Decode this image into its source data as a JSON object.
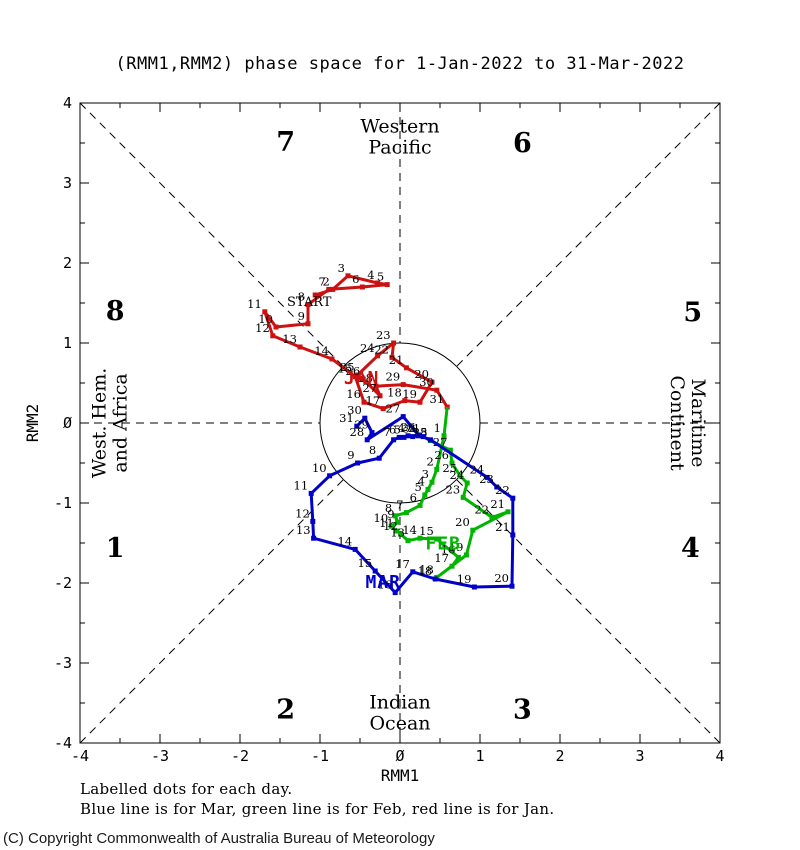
{
  "title": "(RMM1,RMM2) phase space for  1-Jan-2022 to 31-Mar-2022",
  "notes": {
    "line1": "Labelled dots for each day.",
    "line2": "Blue line is for Mar, green line is for Feb, red line is for Jan."
  },
  "copyright": "(C) Copyright Commonwealth of Australia Bureau of Meteorology",
  "chart_data": {
    "type": "line",
    "title": "(RMM1,RMM2) phase space for  1-Jan-2022 to 31-Mar-2022",
    "xlabel": "RMM1",
    "ylabel": "RMM2",
    "xlim": [
      -4,
      4
    ],
    "ylim": [
      -4,
      4
    ],
    "tick_step": 0.5,
    "x_ticks": [
      "-4",
      "-3",
      "-2",
      "-1",
      "Ø",
      "1",
      "2",
      "3",
      "4"
    ],
    "y_ticks": [
      "-4",
      "-3",
      "-2",
      "-1",
      "Ø",
      "1",
      "2",
      "3",
      "4"
    ],
    "unit_circle_radius": 1,
    "grid": "dashed octant dividers stopping at unit circle",
    "phase_labels": [
      {
        "n": "1",
        "x": -3.56,
        "y": -1.56
      },
      {
        "n": "2",
        "x": -1.43,
        "y": -3.58
      },
      {
        "n": "3",
        "x": 1.53,
        "y": -3.58
      },
      {
        "n": "4",
        "x": 3.63,
        "y": -1.56
      },
      {
        "n": "5",
        "x": 3.66,
        "y": 1.38
      },
      {
        "n": "6",
        "x": 1.53,
        "y": 3.5
      },
      {
        "n": "7",
        "x": -1.43,
        "y": 3.51
      },
      {
        "n": "8",
        "x": -3.56,
        "y": 1.4
      }
    ],
    "region_labels": [
      {
        "id": "top",
        "lines": [
          "Western",
          "Pacific"
        ],
        "x": 0,
        "y": 3.58,
        "rotate": 0
      },
      {
        "id": "bottom",
        "lines": [
          "Indian",
          "Ocean"
        ],
        "x": 0,
        "y": -3.62,
        "rotate": 0
      },
      {
        "id": "left",
        "lines": [
          "West. Hem.",
          "and Africa"
        ],
        "x": -3.63,
        "y": 0,
        "rotate": -90
      },
      {
        "id": "right",
        "lines": [
          "Maritime",
          "Continent"
        ],
        "x": 3.6,
        "y": 0,
        "rotate": 90
      }
    ],
    "series": [
      {
        "name": "January 2022",
        "month_label": "JAN",
        "color": "#cc1111",
        "label_pos": [
          -0.48,
          0.49
        ],
        "points": [
          [
            "START",
            -1.06,
            1.6
          ],
          [
            "2",
            -0.84,
            1.67
          ],
          [
            "3",
            -0.65,
            1.84
          ],
          [
            "4",
            -0.28,
            1.75
          ],
          [
            "5",
            -0.16,
            1.73
          ],
          [
            "6",
            -0.47,
            1.7
          ],
          [
            "7",
            -0.89,
            1.67
          ],
          [
            "8",
            -1.15,
            1.48
          ],
          [
            "9",
            -1.15,
            1.24
          ],
          [
            "10",
            -1.55,
            1.2
          ],
          [
            "11",
            -1.69,
            1.39
          ],
          [
            "12",
            -1.59,
            1.09
          ],
          [
            "13",
            -1.25,
            0.95
          ],
          [
            "14",
            -0.85,
            0.8
          ],
          [
            "15",
            -0.56,
            0.58
          ],
          [
            "16",
            -0.45,
            0.26
          ],
          [
            "17",
            -0.21,
            0.18
          ],
          [
            "18",
            0.06,
            0.28
          ],
          [
            "19",
            0.25,
            0.26
          ],
          [
            "20",
            0.4,
            0.51
          ],
          [
            "21",
            0.08,
            0.69
          ],
          [
            "22",
            -0.1,
            0.82
          ],
          [
            "23",
            -0.08,
            1.0
          ],
          [
            "24",
            -0.28,
            0.84
          ],
          [
            "25",
            -0.53,
            0.6
          ],
          [
            "26",
            -0.46,
            0.55
          ],
          [
            "27",
            -0.25,
            0.34
          ],
          [
            "28",
            -0.3,
            0.46
          ],
          [
            "29",
            0.04,
            0.48
          ],
          [
            "30",
            0.46,
            0.41
          ],
          [
            "31",
            0.59,
            0.2
          ]
        ]
      },
      {
        "name": "February 2022",
        "month_label": "FEB",
        "color": "#00b400",
        "label_pos": [
          0.54,
          -1.58
        ],
        "points": [
          [
            "1",
            0.55,
            -0.16
          ],
          [
            "2",
            0.46,
            -0.58
          ],
          [
            "3",
            0.4,
            -0.74
          ],
          [
            "4",
            0.35,
            -0.83
          ],
          [
            "5",
            0.31,
            -0.9
          ],
          [
            "6",
            0.25,
            -1.03
          ],
          [
            "7",
            0.08,
            -1.12
          ],
          [
            "8",
            -0.06,
            -1.16
          ],
          [
            "9",
            -0.03,
            -1.24
          ],
          [
            "10",
            -0.11,
            -1.29
          ],
          [
            "11",
            -0.04,
            -1.35
          ],
          [
            "12",
            0.01,
            -1.39
          ],
          [
            "13",
            0.1,
            -1.47
          ],
          [
            "14",
            0.25,
            -1.44
          ],
          [
            "15",
            0.46,
            -1.45
          ],
          [
            "16",
            0.73,
            -1.68
          ],
          [
            "17",
            0.65,
            -1.79
          ],
          [
            "18",
            0.46,
            -1.93
          ],
          [
            "19",
            0.83,
            -1.65
          ],
          [
            "20",
            0.91,
            -1.34
          ],
          [
            "21",
            1.35,
            -1.11
          ],
          [
            "22",
            1.15,
            -1.18
          ],
          [
            "23",
            0.79,
            -0.93
          ],
          [
            "24",
            0.84,
            -0.75
          ],
          [
            "25",
            0.75,
            -0.66
          ],
          [
            "26",
            0.65,
            -0.5
          ],
          [
            "27",
            0.63,
            -0.34
          ],
          [
            "28",
            0.38,
            -0.22
          ]
        ]
      },
      {
        "name": "March 2022",
        "month_label": "MAR",
        "color": "#0000c8",
        "label_pos": [
          -0.21,
          -2.06
        ],
        "points": [
          [
            "1",
            0.29,
            -0.17
          ],
          [
            "2",
            0.23,
            -0.16
          ],
          [
            "3",
            0.16,
            -0.17
          ],
          [
            "4",
            0.1,
            -0.16
          ],
          [
            "5",
            0.05,
            -0.18
          ],
          [
            "6",
            -0.01,
            -0.18
          ],
          [
            "7",
            -0.08,
            -0.21
          ],
          [
            "8",
            -0.26,
            -0.44
          ],
          [
            "9",
            -0.53,
            -0.5
          ],
          [
            "10",
            -0.88,
            -0.66
          ],
          [
            "11",
            -1.11,
            -0.88
          ],
          [
            "12",
            -1.09,
            -1.23
          ],
          [
            "13",
            -1.08,
            -1.44
          ],
          [
            "14",
            -0.56,
            -1.58
          ],
          [
            "15",
            -0.31,
            -1.85
          ],
          [
            "16",
            -0.06,
            -2.12
          ],
          [
            "17",
            0.16,
            -1.86
          ],
          [
            "18",
            0.44,
            -1.95
          ],
          [
            "19",
            0.93,
            -2.05
          ],
          [
            "20",
            1.4,
            -2.04
          ],
          [
            "21",
            1.41,
            -1.4
          ],
          [
            "22",
            1.41,
            -0.94
          ],
          [
            "23",
            1.21,
            -0.8
          ],
          [
            "24",
            1.09,
            -0.68
          ],
          [
            "25",
            0.38,
            -0.21
          ],
          [
            "26",
            0.23,
            -0.15
          ],
          [
            "27",
            0.04,
            0.08
          ],
          [
            "28",
            -0.41,
            -0.21
          ],
          [
            "29",
            -0.35,
            -0.12
          ],
          [
            "30",
            -0.44,
            0.06
          ],
          [
            "31",
            -0.54,
            -0.04
          ]
        ]
      }
    ]
  }
}
